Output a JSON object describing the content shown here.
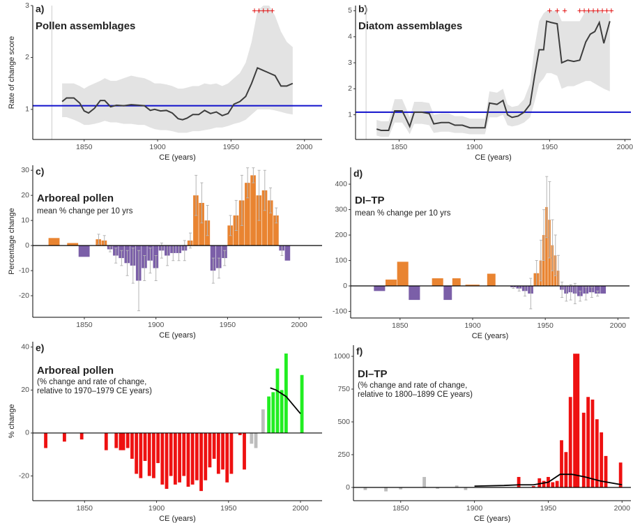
{
  "chart_data": [
    {
      "type": "line",
      "label": "a)",
      "title": "Pollen assemblages",
      "xlabel": "CE (years)",
      "ylabel": "Rate of change score",
      "x": [
        1835,
        1838,
        1843,
        1847,
        1850,
        1853,
        1857,
        1861,
        1864,
        1868,
        1872,
        1877,
        1882,
        1887,
        1891,
        1895,
        1898,
        1902,
        1906,
        1910,
        1914,
        1917,
        1920,
        1924,
        1928,
        1932,
        1936,
        1940,
        1944,
        1948,
        1952,
        1956,
        1960,
        1964,
        1968,
        1972,
        1976,
        1980,
        1984,
        1988,
        1992
      ],
      "values": [
        1.15,
        1.22,
        1.22,
        1.12,
        0.97,
        0.93,
        1.02,
        1.17,
        1.17,
        1.05,
        1.08,
        1.07,
        1.09,
        1.08,
        1.07,
        0.98,
        1.0,
        0.97,
        0.98,
        0.93,
        0.82,
        0.8,
        0.83,
        0.9,
        0.9,
        0.98,
        0.92,
        0.95,
        0.88,
        0.92,
        1.1,
        1.15,
        1.25,
        1.5,
        1.8,
        1.75,
        1.7,
        1.65,
        1.45,
        1.45,
        1.5
      ],
      "band_lower": [
        0.85,
        0.85,
        0.8,
        0.75,
        0.7,
        0.7,
        0.72,
        0.75,
        0.78,
        0.75,
        0.75,
        0.72,
        0.72,
        0.7,
        0.7,
        0.65,
        0.62,
        0.6,
        0.6,
        0.58,
        0.55,
        0.55,
        0.55,
        0.58,
        0.58,
        0.6,
        0.62,
        0.65,
        0.65,
        0.68,
        0.72,
        0.75,
        0.8,
        0.9,
        1.0,
        1.0,
        1.0,
        0.98,
        0.95,
        0.92,
        0.9
      ],
      "band_upper": [
        1.5,
        1.5,
        1.5,
        1.45,
        1.4,
        1.45,
        1.5,
        1.55,
        1.6,
        1.55,
        1.55,
        1.6,
        1.65,
        1.62,
        1.6,
        1.55,
        1.5,
        1.5,
        1.48,
        1.45,
        1.4,
        1.4,
        1.42,
        1.45,
        1.45,
        1.5,
        1.48,
        1.5,
        1.45,
        1.5,
        1.6,
        1.7,
        1.9,
        2.3,
        2.9,
        3.0,
        3.0,
        2.8,
        2.5,
        2.3,
        2.2
      ],
      "color": "#3d3d3d",
      "band_color": "#e3e3e3",
      "ref_line": 1.07,
      "ref_color": "#1010cc",
      "vline": 1828,
      "plus_x": [
        1966,
        1969,
        1972,
        1975,
        1978
      ],
      "plus_label": "+",
      "plus_color": "#e00000",
      "xlim": [
        1815,
        2012
      ],
      "ylim": [
        0.42,
        3
      ],
      "xticks": [
        1850,
        1900,
        1950,
        2000
      ],
      "yticks": [
        1,
        2,
        3
      ]
    },
    {
      "type": "line",
      "label": "b)",
      "title": "Diatom assemblages",
      "xlabel": "CE (years)",
      "x": [
        1835,
        1838,
        1843,
        1847,
        1852,
        1855,
        1857,
        1860,
        1865,
        1870,
        1873,
        1878,
        1883,
        1887,
        1892,
        1897,
        1902,
        1907,
        1910,
        1915,
        1919,
        1922,
        1925,
        1929,
        1933,
        1937,
        1940,
        1943,
        1946,
        1948,
        1951,
        1955,
        1958,
        1962,
        1966,
        1970,
        1974,
        1977,
        1980,
        1983,
        1986,
        1990
      ],
      "values": [
        0.45,
        0.4,
        0.4,
        1.15,
        1.15,
        0.8,
        0.55,
        1.1,
        1.1,
        1.05,
        0.65,
        0.7,
        0.7,
        0.6,
        0.6,
        0.5,
        0.5,
        0.5,
        1.45,
        1.4,
        1.55,
        1.0,
        0.9,
        0.95,
        1.1,
        1.4,
        2.5,
        3.5,
        3.5,
        4.6,
        4.55,
        4.5,
        3.0,
        3.1,
        3.05,
        3.1,
        3.8,
        4.1,
        4.2,
        4.55,
        3.75,
        4.6
      ],
      "band_lower": [
        0.2,
        0.15,
        0.15,
        0.7,
        0.7,
        0.45,
        0.25,
        0.65,
        0.65,
        0.6,
        0.3,
        0.35,
        0.35,
        0.3,
        0.3,
        0.25,
        0.25,
        0.25,
        0.9,
        0.9,
        1.0,
        0.6,
        0.55,
        0.6,
        0.7,
        0.9,
        1.5,
        2.2,
        2.4,
        2.6,
        2.6,
        2.5,
        2.0,
        2.1,
        2.1,
        2.2,
        2.3,
        2.3,
        2.2,
        2.1,
        2.0,
        1.9
      ],
      "band_upper": [
        0.8,
        0.75,
        0.75,
        1.6,
        1.6,
        1.2,
        0.9,
        1.5,
        1.5,
        1.45,
        1.0,
        1.05,
        1.05,
        0.95,
        0.95,
        0.85,
        0.85,
        0.85,
        1.9,
        1.85,
        2.0,
        1.4,
        1.3,
        1.35,
        1.6,
        2.2,
        3.6,
        4.6,
        4.9,
        5.0,
        5.0,
        5.0,
        4.6,
        4.6,
        4.6,
        4.6,
        5.0,
        5.0,
        5.0,
        5.0,
        4.9,
        4.9
      ],
      "color": "#3d3d3d",
      "band_color": "#e3e3e3",
      "ref_line": 1.1,
      "ref_color": "#1010cc",
      "vline": 1828,
      "plus_x": [
        1950,
        1955,
        1960,
        1970,
        1973,
        1976,
        1979,
        1982,
        1985,
        1988,
        1991
      ],
      "plus_label": "+",
      "plus_color": "#e00000",
      "xlim": [
        1821,
        2004
      ],
      "ylim": [
        0.05,
        5.2
      ],
      "xticks": [
        1850,
        1900,
        1950,
        2000
      ],
      "yticks": [
        1,
        2,
        3,
        4,
        5
      ]
    },
    {
      "type": "bar",
      "label": "c)",
      "title": "Arboreal pollen",
      "subtitle": [
        "mean % change per 10 yrs"
      ],
      "xlabel": "CE (years)",
      "ylabel": "Percentage change",
      "x_start": [
        1825,
        1838,
        1846,
        1858,
        1862,
        1866,
        1870,
        1874,
        1878,
        1882,
        1886,
        1890,
        1894,
        1898,
        1902,
        1906,
        1910,
        1914,
        1918,
        1922,
        1926,
        1930,
        1934,
        1938,
        1942,
        1946,
        1950,
        1954,
        1958,
        1962,
        1966,
        1970,
        1974,
        1978,
        1982,
        1986,
        1990
      ],
      "x_end": [
        1833,
        1846,
        1854,
        1862,
        1866,
        1870,
        1874,
        1878,
        1882,
        1886,
        1890,
        1894,
        1898,
        1902,
        1906,
        1910,
        1914,
        1918,
        1922,
        1926,
        1930,
        1934,
        1938,
        1942,
        1946,
        1950,
        1954,
        1958,
        1962,
        1966,
        1970,
        1974,
        1978,
        1982,
        1986,
        1990,
        1994
      ],
      "values": [
        3,
        1,
        -4.5,
        2.5,
        2,
        -1.5,
        -4,
        -5,
        -7,
        -8,
        -14,
        -9,
        -6,
        -9,
        -2,
        -4,
        -3,
        -3,
        -2,
        2,
        20,
        17,
        10,
        -10,
        -9,
        -5,
        8,
        12,
        18,
        25,
        28,
        20,
        22,
        18,
        12,
        -2,
        -6
      ],
      "errors": [
        0,
        0,
        0,
        2,
        2,
        1,
        3,
        3,
        5,
        7,
        12,
        5,
        5,
        5,
        3,
        4,
        3,
        3,
        4,
        3,
        8,
        8,
        6,
        5,
        4,
        3,
        4,
        6,
        10,
        6,
        3,
        10,
        8,
        5,
        3,
        2,
        0
      ],
      "positive_color": "#e98431",
      "negative_color": "#7b5fa8",
      "error_color": "#b5b5b5",
      "xlim": [
        1814,
        2016
      ],
      "ylim": [
        -28.6,
        32
      ],
      "xticks": [
        1850,
        1900,
        1950,
        2000
      ],
      "yticks": [
        -20,
        -10,
        0,
        10,
        20,
        30
      ]
    },
    {
      "type": "bar",
      "label": "d)",
      "title": "DI–TP",
      "subtitle": [
        "mean % change per 10 yrs"
      ],
      "xlabel": "CE (years)",
      "x_start": [
        1832,
        1840,
        1848,
        1856,
        1872,
        1880,
        1886,
        1895,
        1910,
        1926,
        1930,
        1934,
        1938,
        1942,
        1946,
        1948,
        1950,
        1952,
        1954,
        1956,
        1958,
        1960,
        1963,
        1966,
        1969,
        1972,
        1976,
        1980,
        1984,
        1988
      ],
      "x_end": [
        1840,
        1848,
        1856,
        1864,
        1880,
        1886,
        1892,
        1905,
        1916,
        1930,
        1934,
        1938,
        1942,
        1946,
        1948,
        1950,
        1952,
        1954,
        1956,
        1958,
        1960,
        1963,
        1966,
        1969,
        1972,
        1976,
        1980,
        1984,
        1988,
        1992
      ],
      "values": [
        -20,
        25,
        95,
        -55,
        30,
        -55,
        30,
        5,
        48,
        -5,
        -10,
        -20,
        -30,
        50,
        100,
        200,
        310,
        260,
        160,
        120,
        60,
        -15,
        -30,
        -25,
        -30,
        -40,
        -30,
        -25,
        -30,
        -30
      ],
      "errors": [
        0,
        0,
        0,
        0,
        0,
        0,
        0,
        0,
        0,
        5,
        10,
        20,
        60,
        50,
        80,
        100,
        120,
        150,
        100,
        80,
        60,
        30,
        30,
        30,
        40,
        20,
        25,
        20,
        10,
        0
      ],
      "positive_color": "#e98431",
      "negative_color": "#7b5fa8",
      "error_color": "#b5b5b5",
      "xlim": [
        1816,
        2008
      ],
      "ylim": [
        -126,
        466
      ],
      "xticks": [
        1850,
        1900,
        1950,
        2000
      ],
      "yticks": [
        -100,
        0,
        100,
        200,
        300,
        400
      ]
    },
    {
      "type": "bar",
      "label": "e)",
      "title": "Arboreal pollen",
      "subtitle": [
        "(% change and rate of change,",
        "relative to 1970–1979 CE years)"
      ],
      "xlabel": "CE (years)",
      "ylabel": "% change",
      "x": [
        1823,
        1836,
        1848,
        1865,
        1872,
        1875,
        1877,
        1880,
        1883,
        1886,
        1889,
        1892,
        1895,
        1898,
        1901,
        1904,
        1907,
        1910,
        1913,
        1916,
        1919,
        1922,
        1925,
        1928,
        1931,
        1934,
        1937,
        1940,
        1943,
        1946,
        1949,
        1952,
        1958,
        1961,
        1966,
        1969,
        1974,
        1978,
        1981,
        1984,
        1987,
        1990,
        2001
      ],
      "values": [
        -7,
        -4,
        -3,
        -8,
        -7,
        -8,
        -8,
        -7,
        -12,
        -19,
        -21,
        -13,
        -20,
        -21,
        -14,
        -24,
        -26,
        -20,
        -24,
        -23,
        -20,
        -25,
        -24,
        -22,
        -27,
        -22,
        -16,
        -12,
        -19,
        -17,
        -23,
        -19,
        -1,
        -17,
        -5,
        -7,
        11,
        17,
        19,
        30,
        20,
        37,
        27
      ],
      "bar_colors": [
        "#ee1111",
        "#ee1111",
        "#ee1111",
        "#ee1111",
        "#ee1111",
        "#ee1111",
        "#ee1111",
        "#ee1111",
        "#ee1111",
        "#ee1111",
        "#ee1111",
        "#ee1111",
        "#ee1111",
        "#ee1111",
        "#ee1111",
        "#ee1111",
        "#ee1111",
        "#ee1111",
        "#ee1111",
        "#ee1111",
        "#ee1111",
        "#ee1111",
        "#ee1111",
        "#ee1111",
        "#ee1111",
        "#ee1111",
        "#ee1111",
        "#ee1111",
        "#ee1111",
        "#ee1111",
        "#ee1111",
        "#ee1111",
        "#ee1111",
        "#ee1111",
        "#bdbdbd",
        "#bdbdbd",
        "#bdbdbd",
        "#22ee22",
        "#22ee22",
        "#22ee22",
        "#22ee22",
        "#22ee22",
        "#22ee22"
      ],
      "line_x": [
        1979,
        1983,
        1990,
        2000
      ],
      "line_values": [
        21,
        20,
        17,
        9
      ],
      "line_color": "#000000",
      "xlim": [
        1814,
        2015
      ],
      "ylim": [
        -31.5,
        42.5
      ],
      "xticks": [
        1850,
        1900,
        1950,
        2000
      ],
      "yticks": [
        -20,
        0,
        20,
        40
      ]
    },
    {
      "type": "bar",
      "label": "f)",
      "title": "DI–TP",
      "subtitle": [
        "(% change and rate of change,",
        " relative to 1800–1899 CE years)"
      ],
      "xlabel": "CE (years)",
      "x": [
        1826,
        1840,
        1850,
        1866,
        1875,
        1888,
        1894,
        1930,
        1940,
        1944,
        1947,
        1950,
        1953,
        1956,
        1959,
        1962,
        1965,
        1968,
        1970,
        1974,
        1977,
        1980,
        1983,
        1986,
        1989,
        1999
      ],
      "values": [
        -20,
        -30,
        -15,
        80,
        -10,
        15,
        -20,
        80,
        10,
        70,
        50,
        80,
        40,
        50,
        360,
        270,
        690,
        1020,
        1020,
        570,
        690,
        670,
        520,
        420,
        240,
        190
      ],
      "bar_colors": [
        "#bdbdbd",
        "#bdbdbd",
        "#bdbdbd",
        "#bdbdbd",
        "#bdbdbd",
        "#bdbdbd",
        "#bdbdbd",
        "#ee1111",
        "#ee1111",
        "#ee1111",
        "#ee1111",
        "#ee1111",
        "#ee1111",
        "#ee1111",
        "#ee1111",
        "#ee1111",
        "#ee1111",
        "#ee1111",
        "#ee1111",
        "#ee1111",
        "#ee1111",
        "#ee1111",
        "#ee1111",
        "#ee1111",
        "#ee1111",
        "#ee1111"
      ],
      "line_x": [
        1900,
        1920,
        1930,
        1940,
        1950,
        1958,
        1966,
        1975,
        1985,
        2000
      ],
      "line_values": [
        10,
        15,
        20,
        20,
        40,
        100,
        100,
        80,
        50,
        20
      ],
      "line_color": "#000000",
      "xlim": [
        1818,
        2006
      ],
      "ylim": [
        -101,
        1085
      ],
      "xticks": [
        1850,
        1900,
        1950,
        2000
      ],
      "yticks": [
        0,
        250,
        500,
        750,
        1000
      ]
    }
  ]
}
